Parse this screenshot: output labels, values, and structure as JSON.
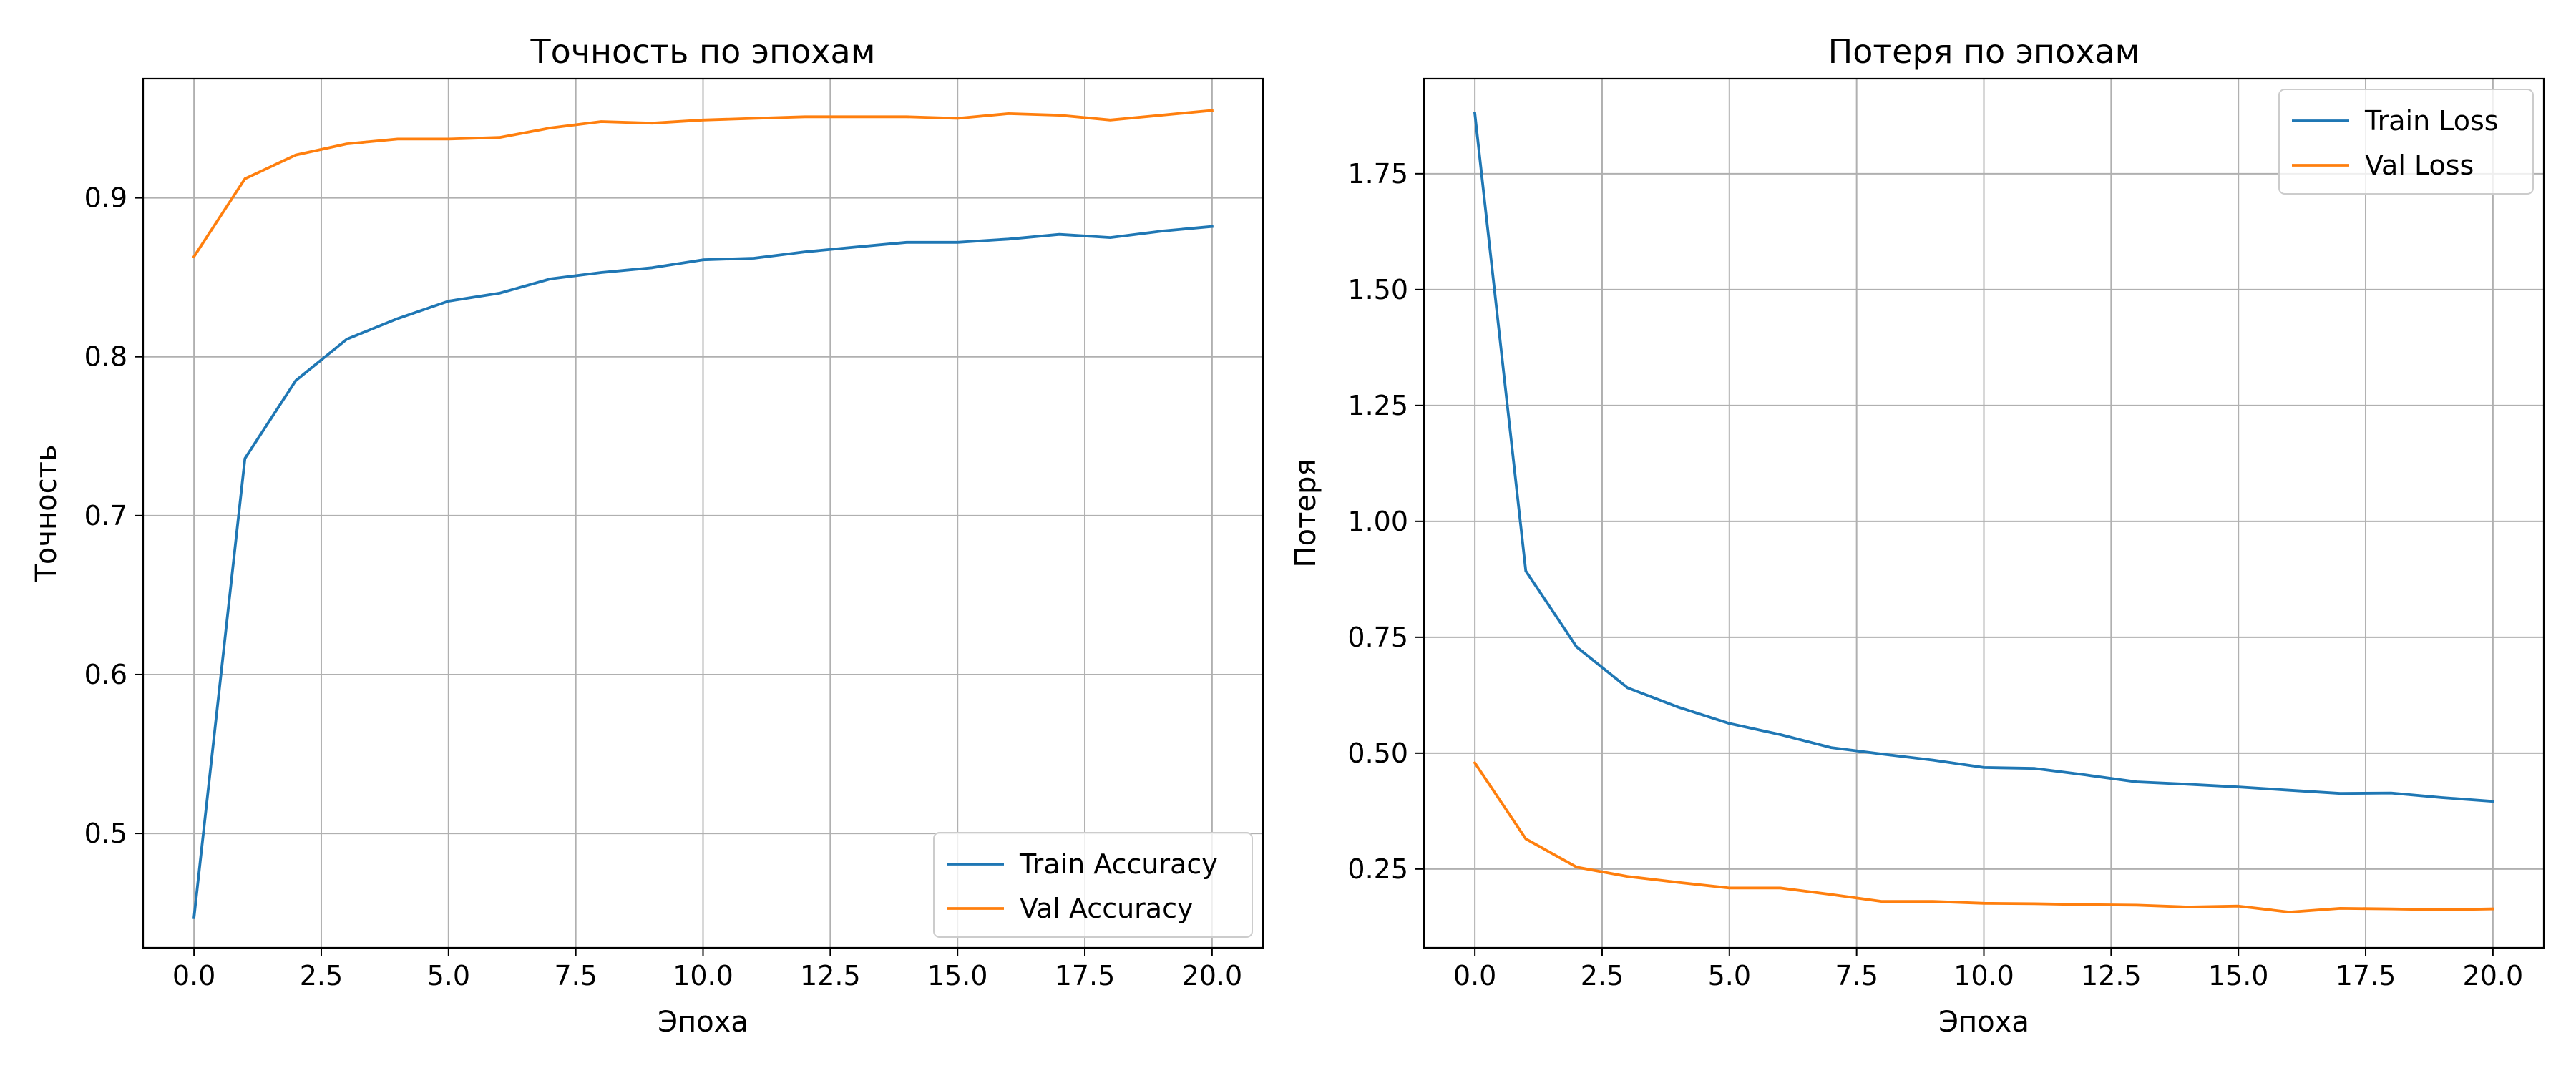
{
  "chart_data": [
    {
      "type": "line",
      "title": "Точность по эпохам",
      "xlabel": "Эпоха",
      "ylabel": "Точность",
      "xlim": [
        -1,
        21
      ],
      "ylim": [
        0.428,
        0.975
      ],
      "xticks": [
        0,
        2.5,
        5,
        7.5,
        10,
        12.5,
        15,
        17.5,
        20
      ],
      "xtick_labels": [
        "0.0",
        "2.5",
        "5.0",
        "7.5",
        "10.0",
        "12.5",
        "15.0",
        "17.5",
        "20.0"
      ],
      "yticks": [
        0.5,
        0.6,
        0.7,
        0.8,
        0.9
      ],
      "ytick_labels": [
        "0.5",
        "0.6",
        "0.7",
        "0.8",
        "0.9"
      ],
      "grid": true,
      "legend_position": "lower-right",
      "x": [
        0,
        1,
        2,
        3,
        4,
        5,
        6,
        7,
        8,
        9,
        10,
        11,
        12,
        13,
        14,
        15,
        16,
        17,
        18,
        19,
        20
      ],
      "series": [
        {
          "name": "Train Accuracy",
          "color": "#1f77b4",
          "values": [
            0.447,
            0.736,
            0.785,
            0.811,
            0.824,
            0.835,
            0.84,
            0.849,
            0.853,
            0.856,
            0.861,
            0.862,
            0.866,
            0.869,
            0.872,
            0.872,
            0.874,
            0.877,
            0.875,
            0.879,
            0.882
          ]
        },
        {
          "name": "Val Accuracy",
          "color": "#ff7f0e",
          "values": [
            0.863,
            0.912,
            0.927,
            0.934,
            0.937,
            0.937,
            0.938,
            0.944,
            0.948,
            0.947,
            0.949,
            0.95,
            0.951,
            0.951,
            0.951,
            0.95,
            0.953,
            0.952,
            0.949,
            0.952,
            0.955
          ]
        }
      ]
    },
    {
      "type": "line",
      "title": "Потеря по эпохам",
      "xlabel": "Эпоха",
      "ylabel": "Потеря",
      "xlim": [
        -1,
        21
      ],
      "ylim": [
        0.08,
        1.955
      ],
      "xticks": [
        0,
        2.5,
        5,
        7.5,
        10,
        12.5,
        15,
        17.5,
        20
      ],
      "xtick_labels": [
        "0.0",
        "2.5",
        "5.0",
        "7.5",
        "10.0",
        "12.5",
        "15.0",
        "17.5",
        "20.0"
      ],
      "yticks": [
        0.25,
        0.5,
        0.75,
        1.0,
        1.25,
        1.5,
        1.75
      ],
      "ytick_labels": [
        "0.25",
        "0.50",
        "0.75",
        "1.00",
        "1.25",
        "1.50",
        "1.75"
      ],
      "grid": true,
      "legend_position": "upper-right",
      "x": [
        0,
        1,
        2,
        3,
        4,
        5,
        6,
        7,
        8,
        9,
        10,
        11,
        12,
        13,
        14,
        15,
        16,
        17,
        18,
        19,
        20
      ],
      "series": [
        {
          "name": "Train Loss",
          "color": "#1f77b4",
          "values": [
            1.88,
            0.893,
            0.729,
            0.641,
            0.599,
            0.564,
            0.54,
            0.512,
            0.498,
            0.485,
            0.469,
            0.467,
            0.453,
            0.438,
            0.433,
            0.427,
            0.42,
            0.413,
            0.414,
            0.404,
            0.396
          ]
        },
        {
          "name": "Val Loss",
          "color": "#ff7f0e",
          "values": [
            0.479,
            0.315,
            0.254,
            0.234,
            0.221,
            0.209,
            0.209,
            0.195,
            0.18,
            0.18,
            0.176,
            0.175,
            0.173,
            0.172,
            0.168,
            0.17,
            0.157,
            0.165,
            0.164,
            0.162,
            0.164
          ]
        }
      ]
    }
  ]
}
